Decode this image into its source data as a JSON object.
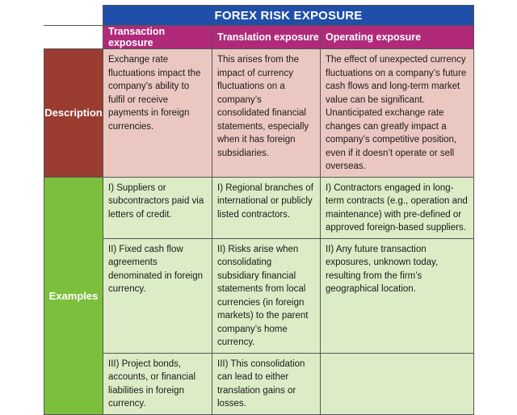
{
  "title": "FOREX RISK EXPOSURE",
  "columns": [
    "Transaction exposure",
    "Translation exposure",
    "Operating exposure"
  ],
  "colors": {
    "title_bg": "#1f4fa8",
    "column_header_bg": "#b02a79",
    "description_header_bg": "#9a3c2f",
    "description_cell_bg": "#ebc7c1",
    "examples_header_bg": "#7cbf3c",
    "examples_cell_bg": "#dcecc6"
  },
  "rows": {
    "description": {
      "label": "Description",
      "cells": [
        "Exchange rate fluctuations impact the company’s ability to fulfil or receive payments in foreign currencies.",
        "This arises from the impact of currency fluctuations on a company’s consolidated financial statements, especially when it has foreign subsidiaries.",
        "The effect of unexpected currency fluctuations on a company’s future cash flows and long-term market value can be significant. Unanticipated exchange rate changes can greatly impact a company’s competitive position, even if it doesn’t operate or sell overseas."
      ]
    },
    "examples": {
      "label": "Examples",
      "rows": [
        [
          "I) Suppliers or subcontractors paid via letters of credit.",
          "I) Regional branches of international or publicly listed contractors.",
          "I) Contractors engaged in long-term contracts (e.g., operation and maintenance) with pre-defined or approved foreign-based suppliers."
        ],
        [
          "II) Fixed cash flow agreements denominated in foreign currency.",
          "II) Risks arise when consolidating subsidiary financial statements from local currencies (in foreign markets) to the parent company’s home currency.",
          "II) Any future transaction exposures, unknown today, resulting from the firm’s geographical location."
        ],
        [
          "III) Project bonds, accounts, or financial liabilities in foreign currency.",
          "III) This consolidation can lead to either translation gains or losses.",
          ""
        ]
      ]
    }
  }
}
